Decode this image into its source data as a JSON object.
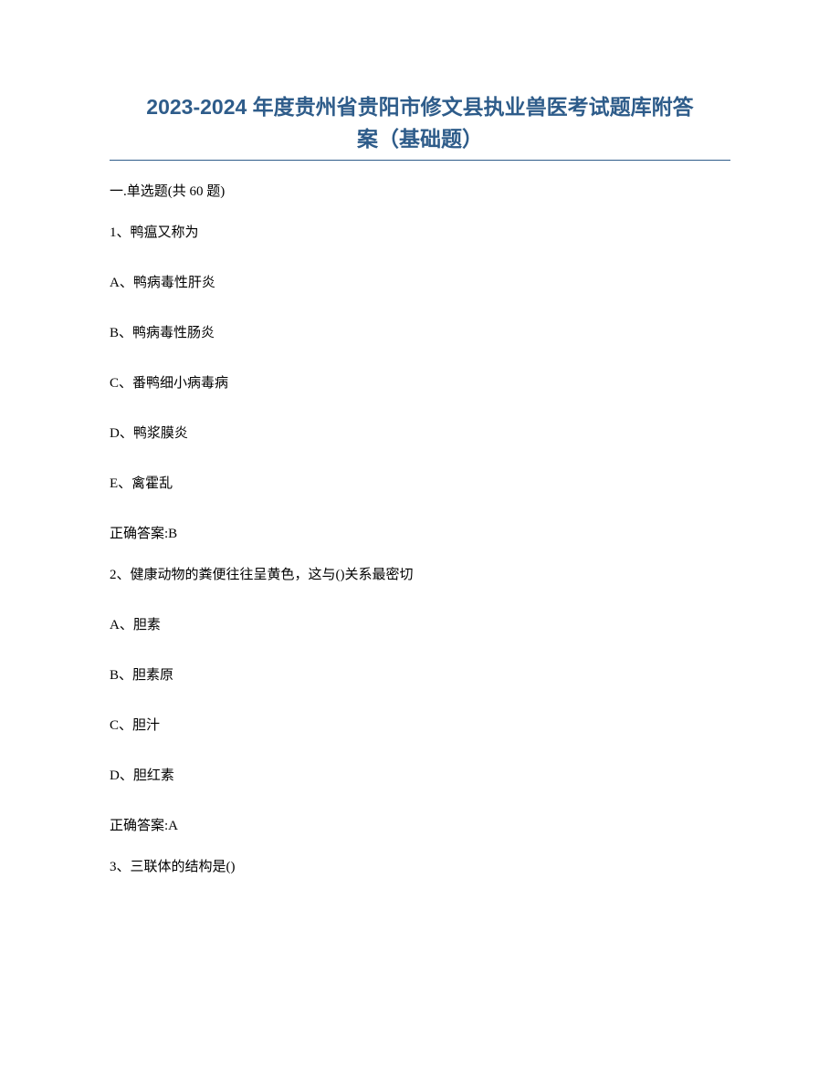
{
  "title": {
    "line1": "2023-2024 年度贵州省贵阳市修文县执业兽医考试题库附答",
    "line2": "案（基础题）",
    "color": "#2e5c8a",
    "fontsize": 23
  },
  "divider": {
    "color": "#2e5c8a"
  },
  "section_header": "一.单选题(共 60 题)",
  "questions": [
    {
      "number": "1、",
      "text": "鸭瘟又称为",
      "options": [
        {
          "label": "A、",
          "text": "鸭病毒性肝炎"
        },
        {
          "label": "B、",
          "text": "鸭病毒性肠炎"
        },
        {
          "label": "C、",
          "text": "番鸭细小病毒病"
        },
        {
          "label": "D、",
          "text": "鸭浆膜炎"
        },
        {
          "label": "E、",
          "text": "禽霍乱"
        }
      ],
      "answer_label": "正确答案:",
      "answer_value": "B"
    },
    {
      "number": "2、",
      "text": "健康动物的粪便往往呈黄色，这与()关系最密切",
      "options": [
        {
          "label": "A、",
          "text": "胆素"
        },
        {
          "label": "B、",
          "text": "胆素原"
        },
        {
          "label": "C、",
          "text": "胆汁"
        },
        {
          "label": "D、",
          "text": "胆红素"
        }
      ],
      "answer_label": "正确答案:",
      "answer_value": "A"
    },
    {
      "number": "3、",
      "text": "三联体的结构是()"
    }
  ],
  "colors": {
    "text": "#000000",
    "background": "#ffffff"
  },
  "fontsize": {
    "body": 15
  }
}
